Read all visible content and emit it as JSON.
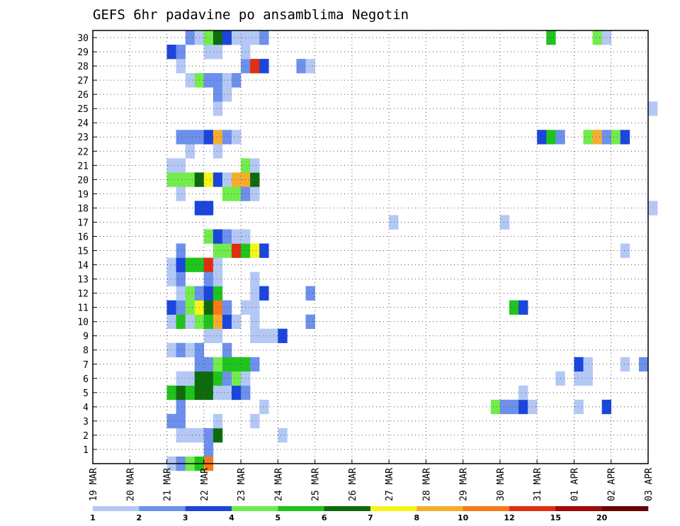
{
  "chart_data": {
    "type": "heatmap",
    "title": "GEFS 6hr padavine po ansamblima Negotin",
    "xlabel": "",
    "ylabel": "",
    "x_range": [
      "2021-03-19 00:00",
      "2021-04-03 00:00"
    ],
    "x_step_hours": 6,
    "x_tick_labels": [
      "19 MAR",
      "20 MAR",
      "21 MAR",
      "22 MAR",
      "23 MAR",
      "24 MAR",
      "25 MAR",
      "26 MAR",
      "27 MAR",
      "28 MAR",
      "29 MAR",
      "30 MAR",
      "31 MAR",
      "01 APR",
      "02 APR",
      "03 APR"
    ],
    "y_tick_labels": [
      "1",
      "2",
      "3",
      "4",
      "5",
      "6",
      "7",
      "8",
      "9",
      "10",
      "11",
      "12",
      "13",
      "14",
      "15",
      "16",
      "17",
      "18",
      "19",
      "20",
      "21",
      "22",
      "23",
      "24",
      "25",
      "26",
      "27",
      "28",
      "29",
      "30"
    ],
    "grid": true,
    "colorbar": {
      "levels": [
        "1",
        "2",
        "3",
        "4",
        "5",
        "6",
        "7",
        "8",
        "10",
        "12",
        "15",
        "20"
      ],
      "colors": [
        "#b4c8f5",
        "#6c90eb",
        "#1b45dc",
        "#72ec4c",
        "#1fc41c",
        "#0e6b0c",
        "#f7f518",
        "#f6ad2e",
        "#f57a1a",
        "#de3010",
        "#a00a0a",
        "#6a0404"
      ]
    },
    "grid_cells_note": "rows = member 0..30; cols = 6-hourly steps starting 19 MAR 00Z; value = colour class index (0..11)",
    "cells": [
      [
        0,
        8,
        0
      ],
      [
        0,
        9,
        1
      ],
      [
        0,
        10,
        3
      ],
      [
        0,
        11,
        4
      ],
      [
        0,
        12,
        8
      ],
      [
        1,
        12,
        1
      ],
      [
        2,
        9,
        0
      ],
      [
        2,
        10,
        0
      ],
      [
        2,
        11,
        0
      ],
      [
        2,
        12,
        1
      ],
      [
        2,
        13,
        5
      ],
      [
        2,
        20,
        0
      ],
      [
        3,
        8,
        1
      ],
      [
        3,
        9,
        1
      ],
      [
        3,
        13,
        0
      ],
      [
        3,
        17,
        0
      ],
      [
        4,
        9,
        1
      ],
      [
        4,
        18,
        0
      ],
      [
        4,
        43,
        3
      ],
      [
        4,
        44,
        1
      ],
      [
        4,
        45,
        1
      ],
      [
        4,
        46,
        2
      ],
      [
        4,
        47,
        0
      ],
      [
        4,
        52,
        0
      ],
      [
        4,
        55,
        2
      ],
      [
        5,
        8,
        4
      ],
      [
        5,
        9,
        5
      ],
      [
        5,
        10,
        4
      ],
      [
        5,
        11,
        5
      ],
      [
        5,
        12,
        5
      ],
      [
        5,
        13,
        0
      ],
      [
        5,
        14,
        0
      ],
      [
        5,
        15,
        2
      ],
      [
        5,
        16,
        1
      ],
      [
        5,
        46,
        0
      ],
      [
        6,
        9,
        0
      ],
      [
        6,
        10,
        0
      ],
      [
        6,
        11,
        5
      ],
      [
        6,
        12,
        5
      ],
      [
        6,
        13,
        4
      ],
      [
        6,
        14,
        1
      ],
      [
        6,
        15,
        3
      ],
      [
        6,
        16,
        0
      ],
      [
        6,
        50,
        0
      ],
      [
        6,
        52,
        0
      ],
      [
        6,
        53,
        0
      ],
      [
        7,
        11,
        1
      ],
      [
        7,
        12,
        1
      ],
      [
        7,
        13,
        3
      ],
      [
        7,
        14,
        4
      ],
      [
        7,
        15,
        4
      ],
      [
        7,
        16,
        4
      ],
      [
        7,
        17,
        1
      ],
      [
        7,
        52,
        2
      ],
      [
        7,
        53,
        0
      ],
      [
        7,
        57,
        0
      ],
      [
        7,
        59,
        1
      ],
      [
        8,
        8,
        0
      ],
      [
        8,
        9,
        1
      ],
      [
        8,
        10,
        0
      ],
      [
        8,
        11,
        1
      ],
      [
        8,
        14,
        1
      ],
      [
        9,
        12,
        0
      ],
      [
        9,
        13,
        0
      ],
      [
        9,
        17,
        0
      ],
      [
        9,
        18,
        0
      ],
      [
        9,
        19,
        0
      ],
      [
        9,
        20,
        2
      ],
      [
        10,
        8,
        0
      ],
      [
        10,
        9,
        4
      ],
      [
        10,
        10,
        0
      ],
      [
        10,
        11,
        3
      ],
      [
        10,
        12,
        4
      ],
      [
        10,
        13,
        7
      ],
      [
        10,
        14,
        2
      ],
      [
        10,
        15,
        0
      ],
      [
        10,
        17,
        0
      ],
      [
        10,
        23,
        1
      ],
      [
        11,
        8,
        2
      ],
      [
        11,
        9,
        1
      ],
      [
        11,
        10,
        3
      ],
      [
        11,
        11,
        6
      ],
      [
        11,
        12,
        5
      ],
      [
        11,
        13,
        8
      ],
      [
        11,
        14,
        1
      ],
      [
        11,
        16,
        0
      ],
      [
        11,
        17,
        0
      ],
      [
        11,
        45,
        4
      ],
      [
        11,
        46,
        2
      ],
      [
        12,
        9,
        0
      ],
      [
        12,
        10,
        3
      ],
      [
        12,
        11,
        1
      ],
      [
        12,
        12,
        2
      ],
      [
        12,
        13,
        4
      ],
      [
        12,
        17,
        0
      ],
      [
        12,
        18,
        2
      ],
      [
        12,
        23,
        1
      ],
      [
        13,
        8,
        0
      ],
      [
        13,
        9,
        1
      ],
      [
        13,
        12,
        1
      ],
      [
        13,
        13,
        0
      ],
      [
        13,
        17,
        0
      ],
      [
        14,
        8,
        0
      ],
      [
        14,
        9,
        2
      ],
      [
        14,
        10,
        4
      ],
      [
        14,
        11,
        4
      ],
      [
        14,
        12,
        9
      ],
      [
        14,
        13,
        0
      ],
      [
        15,
        9,
        1
      ],
      [
        15,
        13,
        3
      ],
      [
        15,
        14,
        3
      ],
      [
        15,
        15,
        9
      ],
      [
        15,
        16,
        4
      ],
      [
        15,
        17,
        6
      ],
      [
        15,
        18,
        2
      ],
      [
        15,
        57,
        0
      ],
      [
        16,
        12,
        3
      ],
      [
        16,
        13,
        2
      ],
      [
        16,
        14,
        1
      ],
      [
        16,
        15,
        0
      ],
      [
        16,
        16,
        0
      ],
      [
        17,
        32,
        0
      ],
      [
        17,
        44,
        0
      ],
      [
        18,
        11,
        2
      ],
      [
        18,
        12,
        2
      ],
      [
        18,
        60,
        0
      ],
      [
        19,
        9,
        0
      ],
      [
        19,
        14,
        3
      ],
      [
        19,
        15,
        3
      ],
      [
        19,
        16,
        1
      ],
      [
        19,
        17,
        0
      ],
      [
        20,
        8,
        3
      ],
      [
        20,
        9,
        3
      ],
      [
        20,
        10,
        3
      ],
      [
        20,
        11,
        5
      ],
      [
        20,
        12,
        6
      ],
      [
        20,
        13,
        2
      ],
      [
        20,
        14,
        0
      ],
      [
        20,
        15,
        7
      ],
      [
        20,
        16,
        7
      ],
      [
        20,
        17,
        5
      ],
      [
        21,
        8,
        0
      ],
      [
        21,
        9,
        0
      ],
      [
        21,
        16,
        3
      ],
      [
        21,
        17,
        0
      ],
      [
        22,
        10,
        0
      ],
      [
        22,
        13,
        0
      ],
      [
        23,
        9,
        1
      ],
      [
        23,
        10,
        1
      ],
      [
        23,
        11,
        1
      ],
      [
        23,
        12,
        2
      ],
      [
        23,
        13,
        7
      ],
      [
        23,
        14,
        1
      ],
      [
        23,
        15,
        0
      ],
      [
        23,
        48,
        2
      ],
      [
        23,
        49,
        4
      ],
      [
        23,
        50,
        1
      ],
      [
        23,
        53,
        3
      ],
      [
        23,
        54,
        7
      ],
      [
        23,
        55,
        1
      ],
      [
        23,
        56,
        3
      ],
      [
        23,
        57,
        2
      ],
      [
        25,
        13,
        0
      ],
      [
        25,
        60,
        0
      ],
      [
        26,
        13,
        1
      ],
      [
        26,
        14,
        0
      ],
      [
        27,
        10,
        0
      ],
      [
        27,
        11,
        3
      ],
      [
        27,
        12,
        1
      ],
      [
        27,
        13,
        1
      ],
      [
        27,
        14,
        0
      ],
      [
        27,
        15,
        1
      ],
      [
        28,
        9,
        0
      ],
      [
        28,
        16,
        1
      ],
      [
        28,
        17,
        9
      ],
      [
        28,
        18,
        2
      ],
      [
        28,
        22,
        1
      ],
      [
        28,
        23,
        0
      ],
      [
        29,
        8,
        2
      ],
      [
        29,
        9,
        1
      ],
      [
        29,
        12,
        0
      ],
      [
        29,
        13,
        0
      ],
      [
        29,
        16,
        0
      ],
      [
        30,
        10,
        1
      ],
      [
        30,
        11,
        0
      ],
      [
        30,
        12,
        3
      ],
      [
        30,
        13,
        5
      ],
      [
        30,
        14,
        2
      ],
      [
        30,
        15,
        0
      ],
      [
        30,
        16,
        0
      ],
      [
        30,
        17,
        0
      ],
      [
        30,
        18,
        1
      ],
      [
        30,
        49,
        4
      ],
      [
        30,
        54,
        3
      ],
      [
        30,
        55,
        0
      ]
    ]
  }
}
